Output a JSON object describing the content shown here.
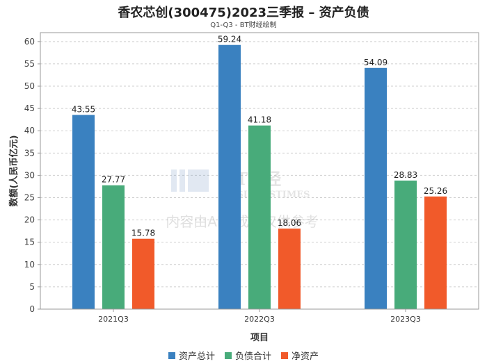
{
  "chart_data": {
    "type": "bar",
    "title": "香农芯创(300475)2023三季报 – 资产负债",
    "subtitle": "Q1-Q3 - BT财经绘制",
    "xlabel": "项目",
    "ylabel": "数额(人民币亿元)",
    "ylim": [
      0,
      62
    ],
    "yticks": [
      0,
      5,
      10,
      15,
      20,
      25,
      30,
      35,
      40,
      45,
      50,
      55,
      60
    ],
    "categories": [
      "2021Q3",
      "2022Q3",
      "2023Q3"
    ],
    "series": [
      {
        "name": "资产总计",
        "color": "#3a81c0",
        "values": [
          43.55,
          59.24,
          54.09
        ],
        "labels": [
          "43.55",
          "59.24",
          "54.09"
        ]
      },
      {
        "name": "负债合计",
        "color": "#48ab7a",
        "values": [
          27.77,
          41.18,
          28.83
        ],
        "labels": [
          "27.77",
          "41.18",
          "28.83"
        ]
      },
      {
        "name": "净资产",
        "color": "#f15a2a",
        "values": [
          15.78,
          18.06,
          25.26
        ],
        "labels": [
          "15.78",
          "18.06",
          "25.26"
        ]
      }
    ],
    "grid": true,
    "legend_position": "bottom"
  },
  "watermark": {
    "logo_text": "BT财经",
    "logo_subtext": "BUSINESSTIMES",
    "notice": "内容由AI生成，仅供参考"
  }
}
